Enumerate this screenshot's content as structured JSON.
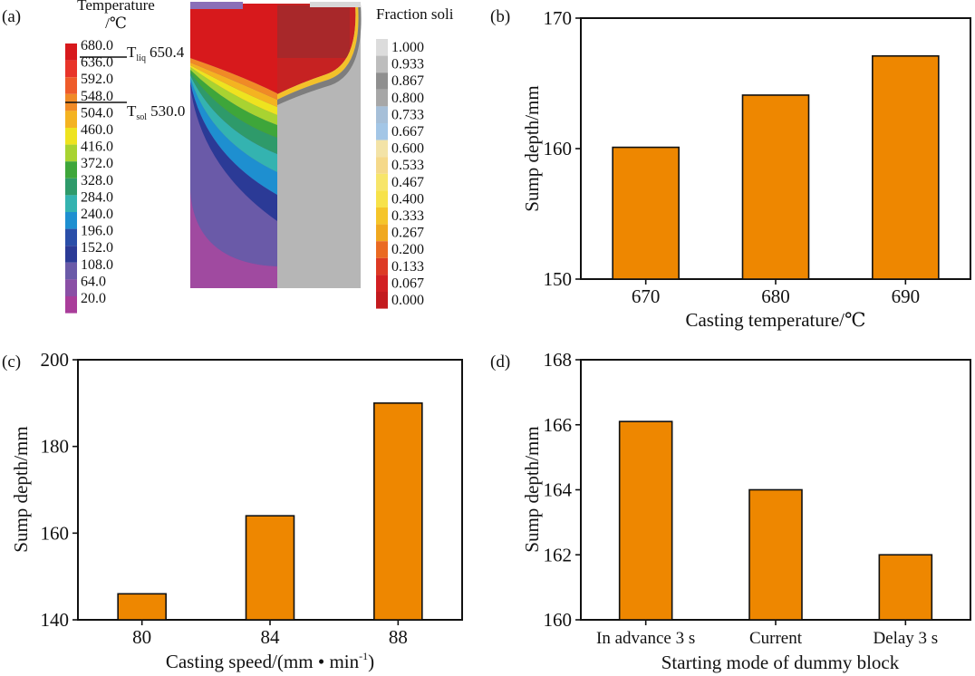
{
  "panel_a": {
    "label": "(a)",
    "temperature_title": [
      "Temperature",
      "/℃"
    ],
    "temperature_levels": [
      "680.0",
      "636.0",
      "592.0",
      "548.0",
      "504.0",
      "460.0",
      "416.0",
      "372.0",
      "328.0",
      "284.0",
      "240.0",
      "196.0",
      "152.0",
      "108.0",
      "64.0",
      "20.0"
    ],
    "temperature_colors": [
      "#d7191c",
      "#e8342a",
      "#ee5b2a",
      "#f08a26",
      "#f4b321",
      "#eee31f",
      "#a8d331",
      "#3ea63a",
      "#2e9a6a",
      "#34b3b0",
      "#1e8fd0",
      "#2a4ea8",
      "#2b3a96",
      "#6a5aa8",
      "#8a4fa5",
      "#a93d9a"
    ],
    "liquidus_label": "T",
    "liquidus_sub": "liq",
    "liquidus_value": "650.4",
    "solidus_label": "T",
    "solidus_sub": "sol",
    "solidus_value": "530.0",
    "fraction_title": "Fraction soli",
    "fraction_levels": [
      "1.000",
      "0.933",
      "0.867",
      "0.800",
      "0.733",
      "0.667",
      "0.600",
      "0.533",
      "0.467",
      "0.400",
      "0.333",
      "0.267",
      "0.200",
      "0.133",
      "0.067",
      "0.000"
    ],
    "fraction_colors": [
      "#dcdcdc",
      "#bdbdbd",
      "#8f8f8f",
      "#a7a7a7",
      "#a6bfd8",
      "#a3c6e6",
      "#f3e3a7",
      "#f5d98a",
      "#f7e56a",
      "#f7e24a",
      "#f5c52a",
      "#f0a81f",
      "#ea6a22",
      "#dd3a24",
      "#d21f22",
      "#c31a1e"
    ]
  },
  "chart_data": [
    {
      "panel": "(b)",
      "type": "bar",
      "categories": [
        "670",
        "680",
        "690"
      ],
      "values": [
        160.1,
        164.1,
        167.1
      ],
      "xlabel": "Casting temperature/℃",
      "ylabel": "Sump depth/mm",
      "ylim": [
        150,
        170
      ],
      "yticks": [
        "150",
        "160",
        "170"
      ],
      "bar_color": "#ee8700"
    },
    {
      "panel": "(c)",
      "type": "bar",
      "categories": [
        "80",
        "84",
        "88"
      ],
      "values": [
        146,
        164,
        190
      ],
      "xlabel": "Casting speed/(mm • min",
      "xlabel_sup": "-1",
      "xlabel_end": ")",
      "ylabel": "Sump depth/mm",
      "ylim": [
        140,
        200
      ],
      "yticks": [
        "140",
        "160",
        "180",
        "200"
      ],
      "bar_color": "#ee8700"
    },
    {
      "panel": "(d)",
      "type": "bar",
      "categories": [
        "In advance 3 s",
        "Current",
        "Delay 3 s"
      ],
      "values": [
        166.1,
        164.0,
        162.0
      ],
      "xlabel": "Starting mode of dummy block",
      "ylabel": "Sump depth/mm",
      "ylim": [
        160,
        168
      ],
      "yticks": [
        "160",
        "162",
        "164",
        "166",
        "168"
      ],
      "bar_color": "#ee8700"
    }
  ]
}
